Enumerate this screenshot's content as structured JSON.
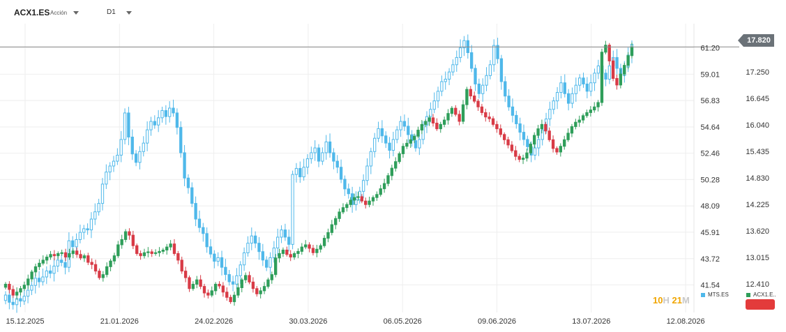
{
  "header": {
    "symbol": "ACX1.ES",
    "type_label": "Acción",
    "timeframe": "D1"
  },
  "price_badge": "17.820",
  "timer": {
    "hours": "10",
    "h": "H",
    "minutes": "21",
    "m": "M"
  },
  "legend": [
    {
      "label": "MTS.ES",
      "color": "#4fb8ea"
    },
    {
      "label": "ACX1.E..",
      "color": "#2f9e5a"
    }
  ],
  "colors": {
    "up": "#2f9e5a",
    "down": "#d83b46",
    "compare": "#4fb8ea",
    "grid": "#eeeeee",
    "last_line": "#888888"
  },
  "chart_data": {
    "type": "candlestick",
    "x_ticks": [
      "15.12.2025",
      "21.01.2026",
      "24.02.2026",
      "30.03.2026",
      "06.05.2026",
      "09.06.2026",
      "13.07.2026",
      "12.08.2026"
    ],
    "left_axis": {
      "ticks": [
        61.2,
        59.01,
        56.83,
        54.64,
        52.46,
        50.28,
        48.09,
        45.91,
        43.72,
        41.54
      ],
      "range": [
        39.6,
        63.2
      ]
    },
    "right_axis": {
      "ticks": [
        "17.250",
        "16.645",
        "16.040",
        "15.435",
        "14.830",
        "14.225",
        "13.620",
        "13.015",
        "12.410"
      ],
      "range": [
        11.85,
        18.35
      ]
    },
    "last_price": 17.82,
    "series": [
      {
        "name": "MTS.ES",
        "axis": "left",
        "close": [
          40.7,
          40.1,
          39.9,
          40.4,
          40.2,
          40.6,
          41.1,
          41.5,
          42.1,
          41.8,
          42.2,
          42.7,
          42.5,
          43.1,
          43.6,
          43.4,
          43.0,
          45.2,
          44.7,
          45.3,
          45.9,
          46.2,
          46.1,
          47.0,
          47.6,
          48.3,
          49.9,
          50.9,
          51.4,
          51.8,
          52.3,
          53.6,
          55.8,
          53.8,
          52.4,
          51.7,
          52.6,
          53.3,
          54.4,
          55.1,
          54.8,
          55.4,
          56.0,
          55.5,
          56.2,
          55.8,
          54.6,
          52.5,
          50.4,
          49.6,
          48.3,
          47.0,
          46.3,
          45.8,
          44.7,
          44.1,
          43.5,
          43.8,
          43.0,
          42.4,
          41.8,
          41.6,
          42.3,
          43.2,
          44.2,
          45.0,
          45.6,
          45.0,
          44.3,
          43.6,
          43.0,
          43.8,
          44.6,
          45.5,
          46.1,
          45.5,
          44.9,
          50.7,
          51.2,
          50.5,
          51.3,
          52.0,
          52.5,
          52.9,
          51.8,
          52.5,
          53.4,
          52.5,
          51.8,
          51.3,
          50.3,
          49.5,
          49.1,
          48.2,
          48.6,
          49.3,
          50.2,
          51.4,
          52.6,
          53.7,
          54.5,
          53.9,
          53.3,
          52.7,
          53.6,
          54.4,
          55.1,
          54.7,
          54.0,
          53.5,
          52.9,
          53.6,
          54.8,
          55.5,
          56.1,
          56.8,
          57.6,
          58.4,
          58.6,
          59.2,
          59.8,
          60.4,
          61.2,
          61.8,
          60.8,
          59.5,
          58.2,
          57.4,
          58.1,
          58.9,
          59.8,
          61.4,
          60.3,
          58.4,
          57.2,
          56.3,
          55.6,
          54.9,
          54.2,
          53.6,
          53.0,
          52.3,
          52.9,
          53.6,
          54.4,
          55.3,
          56.1,
          56.8,
          57.5,
          58.3,
          57.4,
          56.6,
          57.4,
          58.1,
          58.7,
          58.2,
          57.6,
          58.3,
          59.1,
          59.7,
          59.1,
          58.6,
          59.7,
          60.4,
          59.5,
          58.9,
          59.6,
          60.6,
          61.5
        ]
      },
      {
        "name": "ACX1.ES",
        "axis": "right",
        "close": [
          12.4,
          12.28,
          12.15,
          12.22,
          12.3,
          12.38,
          12.52,
          12.68,
          12.8,
          12.88,
          12.95,
          13.02,
          13.08,
          13.05,
          13.1,
          13.12,
          13.02,
          13.1,
          13.16,
          13.08,
          13.0,
          13.05,
          12.9,
          12.85,
          12.7,
          12.55,
          12.62,
          12.8,
          12.93,
          13.05,
          13.3,
          13.42,
          13.6,
          13.52,
          13.28,
          13.1,
          13.05,
          13.12,
          13.14,
          13.1,
          13.12,
          13.15,
          13.18,
          13.25,
          13.32,
          13.1,
          12.95,
          12.7,
          12.55,
          12.3,
          12.4,
          12.5,
          12.35,
          12.2,
          12.15,
          12.25,
          12.4,
          12.36,
          12.22,
          12.1,
          12.0,
          12.15,
          12.32,
          12.5,
          12.6,
          12.45,
          12.3,
          12.18,
          12.25,
          12.35,
          12.5,
          12.62,
          13.0,
          13.1,
          13.18,
          13.08,
          13.02,
          13.1,
          13.15,
          13.25,
          13.3,
          13.22,
          13.12,
          13.2,
          13.28,
          13.45,
          13.58,
          13.76,
          13.9,
          14.05,
          14.15,
          14.22,
          14.32,
          14.38,
          14.4,
          14.3,
          14.22,
          14.3,
          14.38,
          14.45,
          14.58,
          14.7,
          14.88,
          15.05,
          15.2,
          15.38,
          15.55,
          15.62,
          15.7,
          15.78,
          15.92,
          16.05,
          16.12,
          16.2,
          16.08,
          15.95,
          16.05,
          16.15,
          16.3,
          16.42,
          16.28,
          16.12,
          16.5,
          16.85,
          16.7,
          16.58,
          16.45,
          16.32,
          16.22,
          16.18,
          16.05,
          15.95,
          15.82,
          15.7,
          15.58,
          15.45,
          15.32,
          15.25,
          15.28,
          15.4,
          15.6,
          15.8,
          15.95,
          16.05,
          15.9,
          15.7,
          15.5,
          15.42,
          15.55,
          15.7,
          15.85,
          16.0,
          16.1,
          16.15,
          16.25,
          16.32,
          16.38,
          16.45,
          16.55,
          17.7,
          17.86,
          17.5,
          17.1,
          16.95,
          17.2,
          17.4,
          17.62,
          17.82
        ]
      }
    ]
  }
}
